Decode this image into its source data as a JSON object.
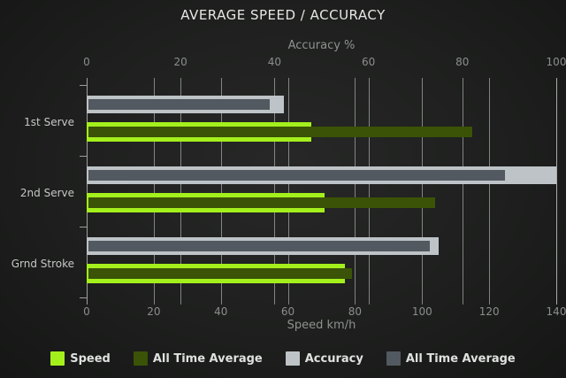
{
  "title": "AVERAGE SPEED / ACCURACY",
  "chart_data": {
    "type": "bar",
    "orientation": "horizontal",
    "grid": true,
    "legend_position": "bottom",
    "categories": [
      "1st Serve",
      "2nd Serve",
      "Grnd Stroke"
    ],
    "axes": {
      "top": {
        "label": "Accuracy %",
        "min": 0,
        "max": 100,
        "ticks": [
          0,
          20,
          40,
          60,
          80,
          100
        ]
      },
      "bottom": {
        "label": "Speed km/h",
        "min": 0,
        "max": 140,
        "ticks": [
          0,
          20,
          40,
          60,
          80,
          100,
          120,
          140
        ]
      }
    },
    "series": [
      {
        "name": "Speed",
        "axis": "bottom",
        "role": "outer",
        "color": "#a4f01c",
        "values": [
          67,
          71,
          77
        ]
      },
      {
        "name": "All Time Average",
        "axis": "bottom",
        "role": "inner",
        "color": "#3a5306",
        "values": [
          115,
          104,
          79
        ]
      },
      {
        "name": "Accuracy",
        "axis": "top",
        "role": "outer",
        "color": "#bdc3c6",
        "values": [
          42,
          100,
          75
        ]
      },
      {
        "name": "All Time Average",
        "axis": "top",
        "role": "inner",
        "color": "#525960",
        "values": [
          39,
          89,
          73
        ]
      }
    ],
    "legend": [
      {
        "label": "Speed",
        "color": "#a4f01c"
      },
      {
        "label": "All Time Average",
        "color": "#3a5306"
      },
      {
        "label": "Accuracy",
        "color": "#bdc3c6"
      },
      {
        "label": "All Time Average",
        "color": "#525960"
      }
    ]
  },
  "colors": {
    "background": "#1e1f1e",
    "title_text": "#e7e7e5",
    "axis_text": "#8e928f",
    "category_text": "#c6c8c6",
    "gridline": "#c3c8c6",
    "legend_text": "#dfe1df"
  }
}
